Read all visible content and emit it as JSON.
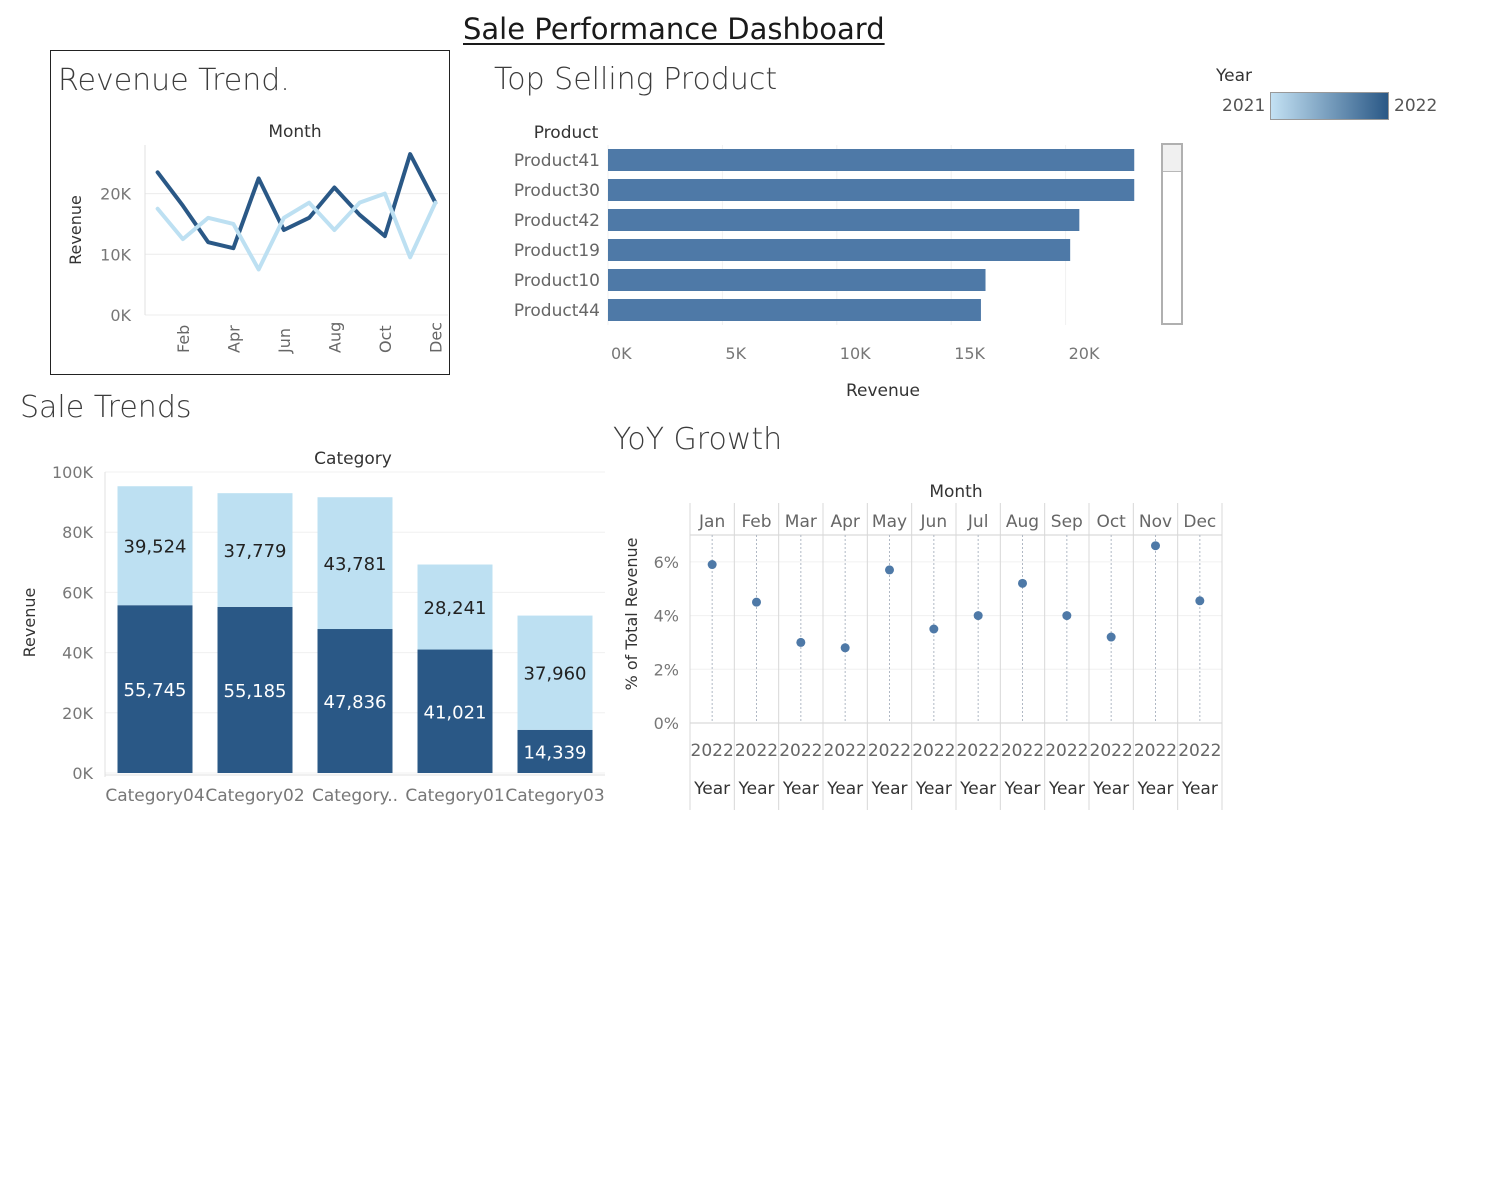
{
  "dashboard": {
    "title": "Sale Performance Dashboard",
    "legend": {
      "title": "Year",
      "min_label": "2021",
      "max_label": "2022",
      "colors": {
        "low": "#c3e1f3",
        "high": "#2a5886"
      }
    }
  },
  "chart_data": [
    {
      "id": "revenue_trend",
      "type": "line",
      "title": "Revenue Trend.",
      "column_header": "Month",
      "ylabel": "Revenue",
      "x": [
        "Jan",
        "Feb",
        "Mar",
        "Apr",
        "May",
        "Jun",
        "Jul",
        "Aug",
        "Sep",
        "Oct",
        "Nov",
        "Dec"
      ],
      "xtick_labels": [
        "Feb",
        "Apr",
        "Jun",
        "Aug",
        "Oct",
        "Dec"
      ],
      "ytick_labels": [
        "0K",
        "10K",
        "20K"
      ],
      "ylim": [
        0,
        28000
      ],
      "series": [
        {
          "color": "#2a5886",
          "values": [
            23500,
            18000,
            12000,
            11000,
            22500,
            14000,
            16000,
            21000,
            16500,
            13000,
            26500,
            18500
          ]
        },
        {
          "color": "#bde0f2",
          "values": [
            17500,
            12500,
            16000,
            15000,
            7500,
            16000,
            18500,
            14000,
            18500,
            20000,
            9500,
            18500
          ]
        }
      ]
    },
    {
      "id": "top_selling_product",
      "type": "bar",
      "orientation": "horizontal",
      "title": "Top Selling Product",
      "row_header": "Product",
      "xlabel": "Revenue",
      "categories": [
        "Product41",
        "Product30",
        "Product42",
        "Product19",
        "Product10",
        "Product44"
      ],
      "values": [
        23000,
        23000,
        20600,
        20200,
        16500,
        16300
      ],
      "xtick_labels": [
        "0K",
        "5K",
        "10K",
        "15K",
        "20K"
      ],
      "xlim": [
        0,
        25000
      ],
      "color": "#4e79a7"
    },
    {
      "id": "sale_trends",
      "type": "bar",
      "stacked": true,
      "title": "Sale Trends",
      "column_header": "Category",
      "ylabel": "Revenue",
      "categories": [
        "Category04",
        "Category02",
        "Category..",
        "Category01",
        "Category03"
      ],
      "ytick_labels": [
        "0K",
        "20K",
        "40K",
        "60K",
        "80K",
        "100K"
      ],
      "ylim": [
        0,
        100000
      ],
      "series": [
        {
          "color": "#2a5886",
          "values": [
            55745,
            55185,
            47836,
            41021,
            14339
          ],
          "labels": [
            "55,745",
            "55,185",
            "47,836",
            "41,021",
            "14,339"
          ]
        },
        {
          "color": "#bde0f2",
          "values": [
            39524,
            37779,
            43781,
            28241,
            37960
          ],
          "labels": [
            "39,524",
            "37,779",
            "43,781",
            "28,241",
            "37,960"
          ]
        }
      ]
    },
    {
      "id": "yoy_growth",
      "type": "scatter",
      "title": "YoY Growth",
      "column_header": "Month",
      "ylabel": "% of Total Revenue",
      "months": [
        "Jan",
        "Feb",
        "Mar",
        "Apr",
        "May",
        "Jun",
        "Jul",
        "Aug",
        "Sep",
        "Oct",
        "Nov",
        "Dec"
      ],
      "year_label": "2022",
      "row_label": "Year",
      "values": [
        5.9,
        4.5,
        3.0,
        2.8,
        5.7,
        3.5,
        4.0,
        5.2,
        4.0,
        3.2,
        6.6,
        4.55
      ],
      "ytick_labels": [
        "0%",
        "2%",
        "4%",
        "6%"
      ],
      "ylim": [
        0,
        7
      ],
      "color": "#4e79a7"
    }
  ]
}
